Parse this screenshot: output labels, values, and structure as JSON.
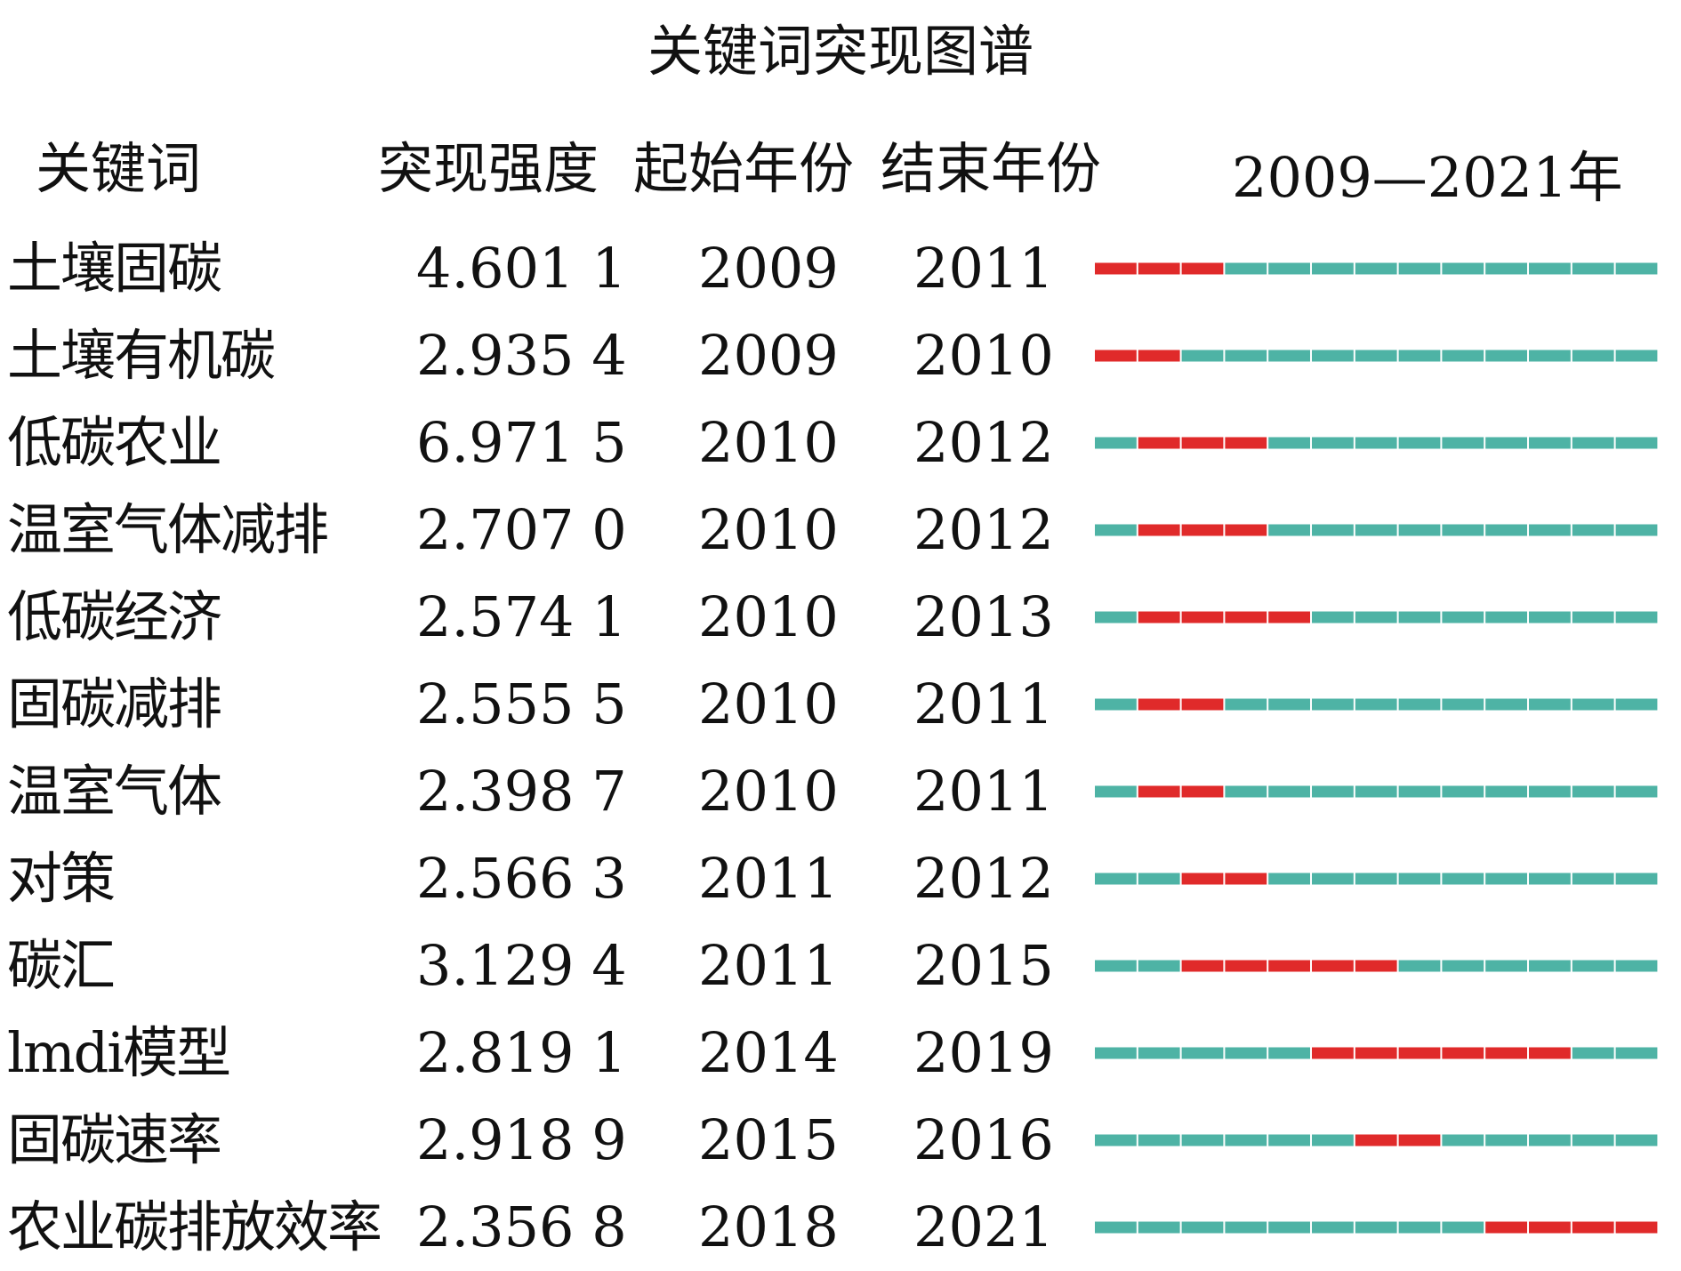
{
  "title": "关键词突现图谱",
  "headers": {
    "keyword": "关键词",
    "strength": "突现强度",
    "start": "起始年份",
    "end": "结束年份",
    "range": "2009—2021年"
  },
  "colors": {
    "burst": "#e02a2a",
    "base": "#4eb3a5",
    "text": "#111111"
  },
  "chart_data": {
    "type": "table",
    "year_range": [
      2009,
      2021
    ],
    "columns": [
      "关键词",
      "突现强度",
      "起始年份",
      "结束年份",
      "2009—2021年"
    ],
    "rows": [
      {
        "keyword": "土壤固碳",
        "strength": "4.601 1",
        "start": "2009",
        "end": "2011"
      },
      {
        "keyword": "土壤有机碳",
        "strength": "2.935 4",
        "start": "2009",
        "end": "2010"
      },
      {
        "keyword": "低碳农业",
        "strength": "6.971 5",
        "start": "2010",
        "end": "2012"
      },
      {
        "keyword": "温室气体减排",
        "strength": "2.707 0",
        "start": "2010",
        "end": "2012"
      },
      {
        "keyword": "低碳经济",
        "strength": "2.574 1",
        "start": "2010",
        "end": "2013"
      },
      {
        "keyword": "固碳减排",
        "strength": "2.555 5",
        "start": "2010",
        "end": "2011"
      },
      {
        "keyword": "温室气体",
        "strength": "2.398 7",
        "start": "2010",
        "end": "2011"
      },
      {
        "keyword": "对策",
        "strength": "2.566 3",
        "start": "2011",
        "end": "2012"
      },
      {
        "keyword": "碳汇",
        "strength": "3.129 4",
        "start": "2011",
        "end": "2015"
      },
      {
        "keyword": "lmdi模型",
        "strength": "2.819 1",
        "start": "2014",
        "end": "2019"
      },
      {
        "keyword": "固碳速率",
        "strength": "2.918 9",
        "start": "2015",
        "end": "2016"
      },
      {
        "keyword": "农业碳排放效率",
        "strength": "2.356 8",
        "start": "2018",
        "end": "2021"
      }
    ]
  }
}
